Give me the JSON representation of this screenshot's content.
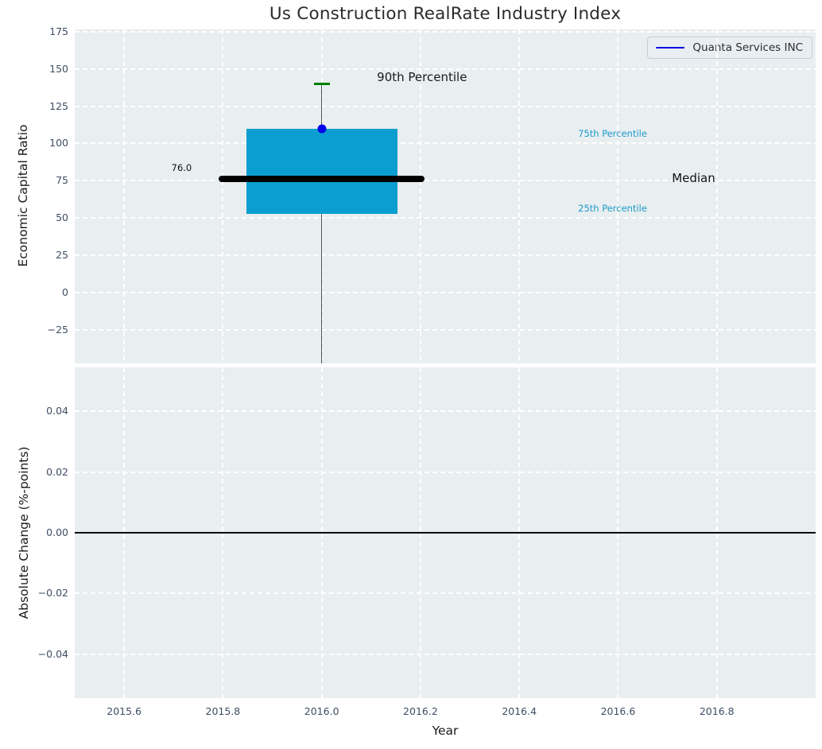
{
  "figure": {
    "title": "Us Construction RealRate Industry Index",
    "colors": {
      "axes_background": "#e9eef0",
      "grid": "#ffffff",
      "tick_text": "#3f4d63",
      "title_text": "#2b2b2b",
      "label_text": "#1a1a1a"
    }
  },
  "chart_data": [
    {
      "type": "boxplot",
      "title": "Us Construction RealRate Industry Index",
      "ylabel": "Economic Capital Ratio",
      "xlim": [
        2015.5,
        2017.0
      ],
      "ylim": [
        -47.5,
        176.5
      ],
      "grid": "white dashed",
      "xticks": [
        2015.6,
        2015.8,
        2016.0,
        2016.2,
        2016.4,
        2016.6,
        2016.8
      ],
      "xtick_labels": [
        "2015.6",
        "2015.8",
        "2016.0",
        "2016.2",
        "2016.4",
        "2016.6",
        "2016.8"
      ],
      "yticks": [
        175,
        150,
        125,
        100,
        75,
        50,
        25,
        0,
        -25
      ],
      "ytick_labels": [
        "175",
        "150",
        "125",
        "100",
        "75",
        "50",
        "25",
        "0",
        "−25"
      ],
      "legend": {
        "label": "Quanta Services INC",
        "line_color": "#0000e0",
        "position": "upper right"
      },
      "box": {
        "x": 2016.0,
        "half_width": 0.153,
        "p90": 140,
        "p75": 110,
        "median": 76.0,
        "p25": 53,
        "median_label": "76.0",
        "median_line_half_width": 0.208,
        "cap_half_width": 0.016,
        "whisker_extends_below_axis": true,
        "colors": {
          "box": "#0a9ed1",
          "median": "#000000",
          "cap": "#008000",
          "whisker": "#32373e"
        }
      },
      "marker": {
        "x": 2016.0,
        "y": 110,
        "color": "#0000e8",
        "series": "Quanta Services INC"
      },
      "annotations": [
        {
          "text": "90th Percentile",
          "x": 2016.203,
          "y": 144.5,
          "color": "#1a1a1a",
          "size": 15,
          "align": "center"
        },
        {
          "text": "75th Percentile",
          "x": 2016.519,
          "y": 106.6,
          "color": "#1d9bca",
          "size": 11.5,
          "align": "left"
        },
        {
          "text": "Median",
          "x": 2016.709,
          "y": 76.8,
          "color": "#111111",
          "size": 15,
          "align": "left"
        },
        {
          "text": "25th Percentile",
          "x": 2016.519,
          "y": 56.5,
          "color": "#1d9bca",
          "size": 11.5,
          "align": "left"
        },
        {
          "text": "76.0",
          "x": 2015.737,
          "y": 83.7,
          "color": "#111111",
          "size": 11.5,
          "align": "right"
        }
      ]
    },
    {
      "type": "line",
      "xlabel": "Year",
      "ylabel": "Absolute Change (%-points)",
      "xlim": [
        2015.5,
        2017.0
      ],
      "ylim": [
        -0.0545,
        0.0545
      ],
      "grid": "white dashed",
      "xticks": [
        2015.6,
        2015.8,
        2016.0,
        2016.2,
        2016.4,
        2016.6,
        2016.8
      ],
      "xtick_labels": [
        "2015.6",
        "2015.8",
        "2016.0",
        "2016.2",
        "2016.4",
        "2016.6",
        "2016.8"
      ],
      "yticks": [
        0.04,
        0.02,
        0.0,
        -0.02,
        -0.04
      ],
      "ytick_labels": [
        "0.04",
        "0.02",
        "0.00",
        "−0.02",
        "−0.04"
      ],
      "zero_line": {
        "y": 0.0,
        "color": "#000000"
      },
      "series": []
    }
  ]
}
